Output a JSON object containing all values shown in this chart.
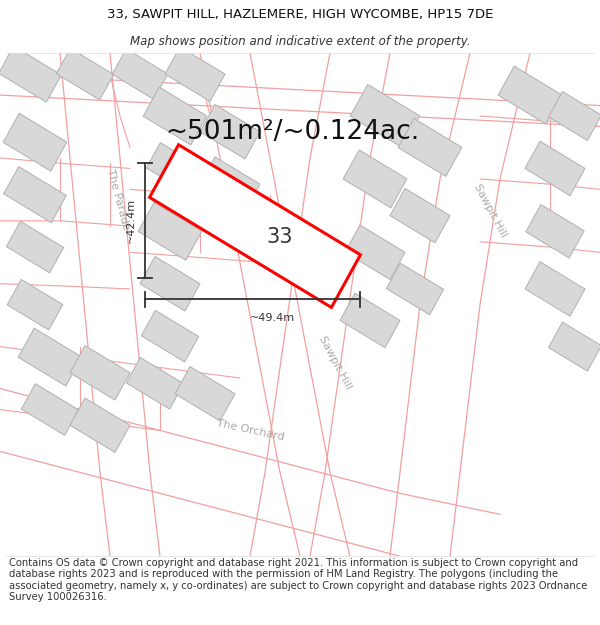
{
  "title_line1": "33, SAWPIT HILL, HAZLEMERE, HIGH WYCOMBE, HP15 7DE",
  "title_line2": "Map shows position and indicative extent of the property.",
  "area_text": "~501m²/~0.124ac.",
  "label_33": "33",
  "dim_vertical": "~42.4m",
  "dim_horizontal": "~49.4m",
  "street_sawpit_hill_right": "Sawpit Hill",
  "street_sawpit_hill_bottom": "Sawpit Hill",
  "street_the_orchard": "The Orchard",
  "street_the_parade": "The Parade",
  "footer_text": "Contains OS data © Crown copyright and database right 2021. This information is subject to Crown copyright and database rights 2023 and is reproduced with the permission of HM Land Registry. The polygons (including the associated geometry, namely x, y co-ordinates) are subject to Crown copyright and database rights 2023 Ordnance Survey 100026316.",
  "map_bg": "#ffffff",
  "road_line_color": "#f0a0a0",
  "building_fill": "#d8d8d8",
  "building_outline": "#b0b0b0",
  "plot_color": "#ff0000",
  "plot_fill": "#ffffff",
  "dim_color": "#333333",
  "text_color": "#333333",
  "title_fontsize": 9.5,
  "subtitle_fontsize": 8.5,
  "area_fontsize": 19,
  "label_fontsize": 15,
  "street_fontsize": 8,
  "dim_fontsize": 8,
  "footer_fontsize": 7.2
}
